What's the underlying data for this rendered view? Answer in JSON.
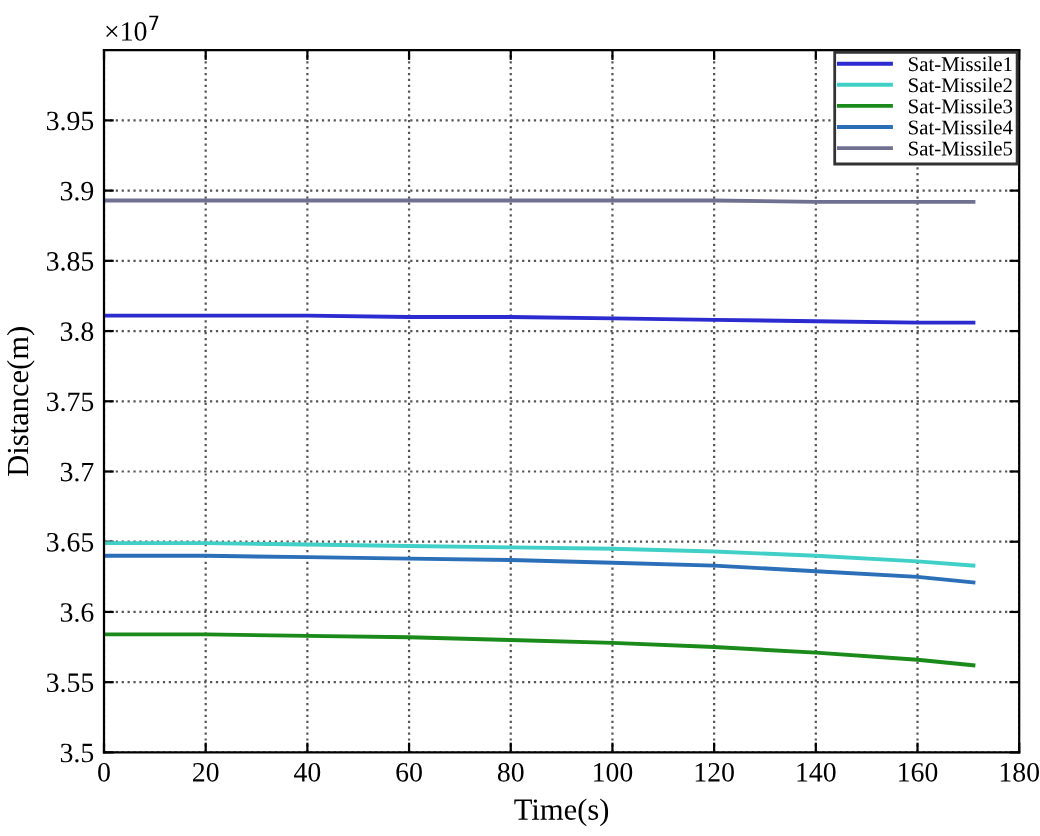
{
  "chart_data": {
    "type": "line",
    "xlabel": "Time(s)",
    "ylabel": "Distance(m)",
    "x": [
      0,
      20,
      40,
      60,
      80,
      100,
      120,
      140,
      160,
      171
    ],
    "series": [
      {
        "name": "Sat-Missile1",
        "color": "#2b2bd0",
        "values": [
          3.811,
          3.811,
          3.811,
          3.81,
          3.81,
          3.809,
          3.808,
          3.807,
          3.806,
          3.806
        ]
      },
      {
        "name": "Sat-Missile2",
        "color": "#40d0c8",
        "values": [
          3.649,
          3.649,
          3.648,
          3.647,
          3.646,
          3.645,
          3.643,
          3.64,
          3.636,
          3.633
        ]
      },
      {
        "name": "Sat-Missile3",
        "color": "#1a8a1a",
        "values": [
          3.584,
          3.584,
          3.583,
          3.582,
          3.58,
          3.578,
          3.575,
          3.571,
          3.566,
          3.562
        ]
      },
      {
        "name": "Sat-Missile4",
        "color": "#2a6fb8",
        "values": [
          3.64,
          3.64,
          3.639,
          3.638,
          3.637,
          3.635,
          3.633,
          3.629,
          3.625,
          3.621
        ]
      },
      {
        "name": "Sat-Missile5",
        "color": "#707090",
        "values": [
          3.893,
          3.893,
          3.893,
          3.893,
          3.893,
          3.893,
          3.893,
          3.892,
          3.892,
          3.892
        ]
      }
    ],
    "xlim": [
      0,
      180
    ],
    "xticks": [
      0,
      20,
      40,
      60,
      80,
      100,
      120,
      140,
      160,
      180
    ],
    "ylim": [
      3.5,
      4.0
    ],
    "yticks": [
      3.5,
      3.55,
      3.6,
      3.65,
      3.7,
      3.75,
      3.8,
      3.85,
      3.9,
      3.95
    ],
    "annotations": [
      "×10$^{7}$"
    ],
    "grid": true,
    "legend": "top right",
    "marker": "none",
    "line_style": "solid"
  }
}
